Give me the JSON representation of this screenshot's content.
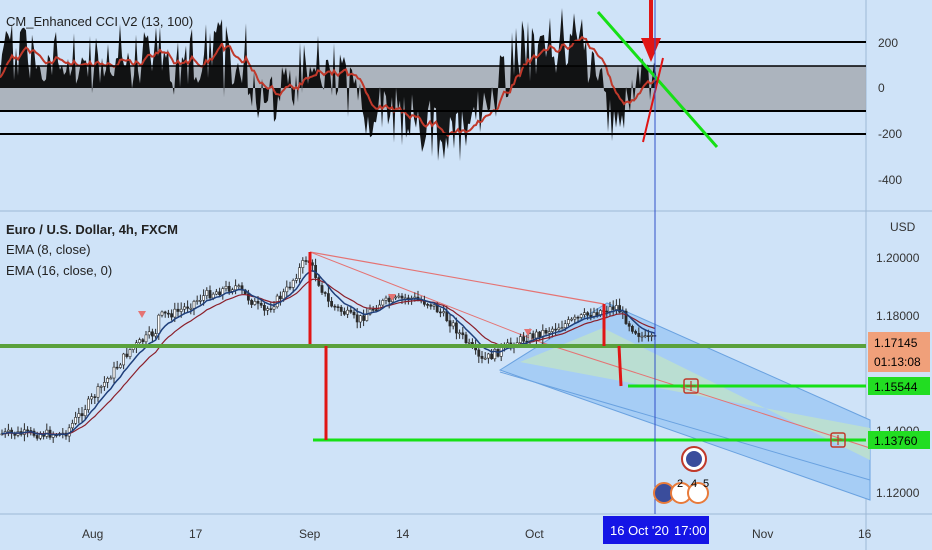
{
  "colors": {
    "background": "#cfe3f8",
    "candle": "#2b2b2b",
    "ema_fast": "#1f3f7a",
    "ema_slow": "#8b1f2a",
    "cci": "#000000",
    "cci_ma": "#c0392b",
    "trend_line": "#e57373",
    "vertical_marker": "#e01515",
    "target_line": "#16e016",
    "support_line": "#5aa13c",
    "channel_fill": "#a6cdf5",
    "channel_mid_fill": "#c3e6c3",
    "crosshair": "#3050c8",
    "date_badge": "#1515e6",
    "price_badge_current": "#f0a07a",
    "price_badge_target": "#22dd22"
  },
  "oscillator": {
    "title": "CM_Enhanced CCI V2 (13, 100)",
    "ticks": [
      "200",
      "0",
      "-200",
      "-400"
    ]
  },
  "main_pane": {
    "title": "Euro / U.S. Dollar, 4h, FXCM",
    "indicator1": "EMA (8, close)",
    "indicator2": "EMA (16, close, 0)",
    "currency": "USD",
    "ticks": [
      "1.20000",
      "1.18000",
      "1.12000"
    ],
    "partial_tick": "1.14000"
  },
  "price_badges": {
    "current": "1.17145",
    "countdown": "01:13:08",
    "target1": "1.15544",
    "target2": "1.13760"
  },
  "x_axis": {
    "labels": [
      "Aug",
      "17",
      "Sep",
      "14",
      "Oct",
      "Nov",
      "16"
    ],
    "crosshair_date": "16 Oct '20",
    "crosshair_time": "17:00"
  },
  "event_icons": {
    "counts": [
      "2",
      "4",
      "5"
    ]
  },
  "chart_data": {
    "type": "candlestick",
    "symbol": "Euro / U.S. Dollar",
    "timeframe": "4h",
    "source": "FXCM",
    "price_axis_labels": [
      1.2,
      1.18,
      1.12
    ],
    "price_axis_range": [
      1.112,
      1.216
    ],
    "cci_axis_labels": [
      200,
      0,
      -200,
      -400
    ],
    "cci_levels": [
      200,
      100,
      -100,
      -200
    ],
    "cci_axis_range": [
      -490,
      380
    ],
    "date_axis": [
      "Aug",
      "17",
      "Sep",
      "14",
      "Oct",
      "Nov",
      "16"
    ],
    "price_path": [
      {
        "x": "Jul 15",
        "y": 1.139
      },
      {
        "x": "Jul 20",
        "y": 1.155
      },
      {
        "x": "Jul 24",
        "y": 1.168
      },
      {
        "x": "Jul 28",
        "y": 1.175
      },
      {
        "x": "Aug 2",
        "y": 1.181
      },
      {
        "x": "Aug 5",
        "y": 1.186
      },
      {
        "x": "Aug 8",
        "y": 1.178
      },
      {
        "x": "Aug 13",
        "y": 1.181
      },
      {
        "x": "Aug 17",
        "y": 1.187
      },
      {
        "x": "Aug 21",
        "y": 1.19
      },
      {
        "x": "Aug 25",
        "y": 1.181
      },
      {
        "x": "Aug 28",
        "y": 1.188
      },
      {
        "x": "Sep 1",
        "y": 1.2
      },
      {
        "x": "Sep 4",
        "y": 1.184
      },
      {
        "x": "Sep 8",
        "y": 1.178
      },
      {
        "x": "Sep 11",
        "y": 1.184
      },
      {
        "x": "Sep 15",
        "y": 1.186
      },
      {
        "x": "Sep 18",
        "y": 1.184
      },
      {
        "x": "Sep 21",
        "y": 1.177
      },
      {
        "x": "Sep 25",
        "y": 1.164
      },
      {
        "x": "Sep 30",
        "y": 1.171
      },
      {
        "x": "Oct 5",
        "y": 1.177
      },
      {
        "x": "Oct 9",
        "y": 1.181
      },
      {
        "x": "Oct 12",
        "y": 1.183
      },
      {
        "x": "Oct 14",
        "y": 1.176
      },
      {
        "x": "Oct 16",
        "y": 1.17145
      }
    ],
    "cci_path": [
      {
        "x": "Jul 15",
        "y": 150
      },
      {
        "x": "Jul 22",
        "y": 60
      },
      {
        "x": "Jul 29",
        "y": 200
      },
      {
        "x": "Aug 5",
        "y": -60
      },
      {
        "x": "Aug 12",
        "y": 80
      },
      {
        "x": "Aug 19",
        "y": 180
      },
      {
        "x": "Aug 26",
        "y": -80
      },
      {
        "x": "Sep 2",
        "y": 150
      },
      {
        "x": "Sep 9",
        "y": -80
      },
      {
        "x": "Sep 16",
        "y": -160
      },
      {
        "x": "Sep 23",
        "y": -230
      },
      {
        "x": "Sep 30",
        "y": 160
      },
      {
        "x": "Oct 7",
        "y": 200
      },
      {
        "x": "Oct 12",
        "y": -150
      },
      {
        "x": "Oct 16",
        "y": 60
      }
    ],
    "annotations": {
      "support_level": 1.1714,
      "targets": [
        1.15544,
        1.1376
      ],
      "descending_trendline": {
        "from": {
          "x": "Sep 1",
          "y": 1.2
        },
        "to": {
          "x": "Oct 1",
          "y": 1.175
        }
      },
      "channel": "descending parallel channel from Sep 25 (1.164) toward Nov 16",
      "crosshair": "16 Oct '20 17:00"
    }
  }
}
